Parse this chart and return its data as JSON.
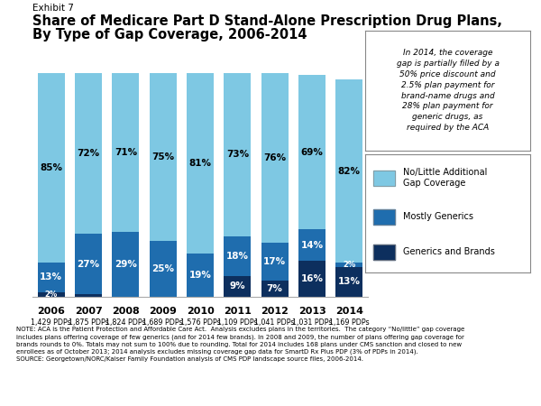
{
  "years": [
    "2006",
    "2007",
    "2008",
    "2009",
    "2010",
    "2011",
    "2012",
    "2013",
    "2014"
  ],
  "pdps": [
    "1,429 PDPs",
    "1,875 PDPs",
    "1,824 PDPs",
    "1,689 PDPs",
    "1,576 PDPs",
    "1,109 PDPs",
    "1,041 PDPs",
    "1,031 PDPs",
    "1,169 PDPs"
  ],
  "no_little": [
    85,
    72,
    71,
    75,
    81,
    73,
    76,
    69,
    82
  ],
  "mostly_generics": [
    13,
    27,
    29,
    25,
    19,
    18,
    17,
    14,
    2
  ],
  "generics_brands": [
    2,
    1,
    0,
    0,
    0,
    9,
    7,
    16,
    13
  ],
  "color_no_little": "#7EC8E3",
  "color_mostly_generics": "#1F6DAE",
  "color_generics_brands": "#0D2F5E",
  "exhibit_text": "Exhibit 7",
  "title_line1": "Share of Medicare Part D Stand-Alone Prescription Drug Plans,",
  "title_line2": "By Type of Gap Coverage, 2006-2014",
  "annotation_text": "In 2014, the coverage\ngap is partially filled by a\n50% price discount and\n2.5% plan payment for\nbrand-name drugs and\n28% plan payment for\ngeneric drugs, as\nrequired by the ACA",
  "legend_label_0": "No/Little Additional\nGap Coverage",
  "legend_label_1": "Mostly Generics",
  "legend_label_2": "Generics and Brands",
  "note_text": "NOTE: ACA is the Patient Protection and Affordable Care Act.  Analysis excludes plans in the territories.  The category “No/little” gap coverage\nincludes plans offering coverage of few generics (and for 2014 few brands). In 2008 and 2009, the number of plans offering gap coverage for\nbrands rounds to 0%. Totals may not sum to 100% due to rounding. Total for 2014 includes 168 plans under CMS sanction and closed to new\nenrollees as of October 2013; 2014 analysis excludes missing coverage gap data for SmartD Rx Plus PDP (3% of PDPs in 2014).",
  "source_text": "SOURCE: Georgetown/NORC/Kaiser Family Foundation analysis of CMS PDP landscape source files, 2006-2014.",
  "background_color": "#FFFFFF"
}
